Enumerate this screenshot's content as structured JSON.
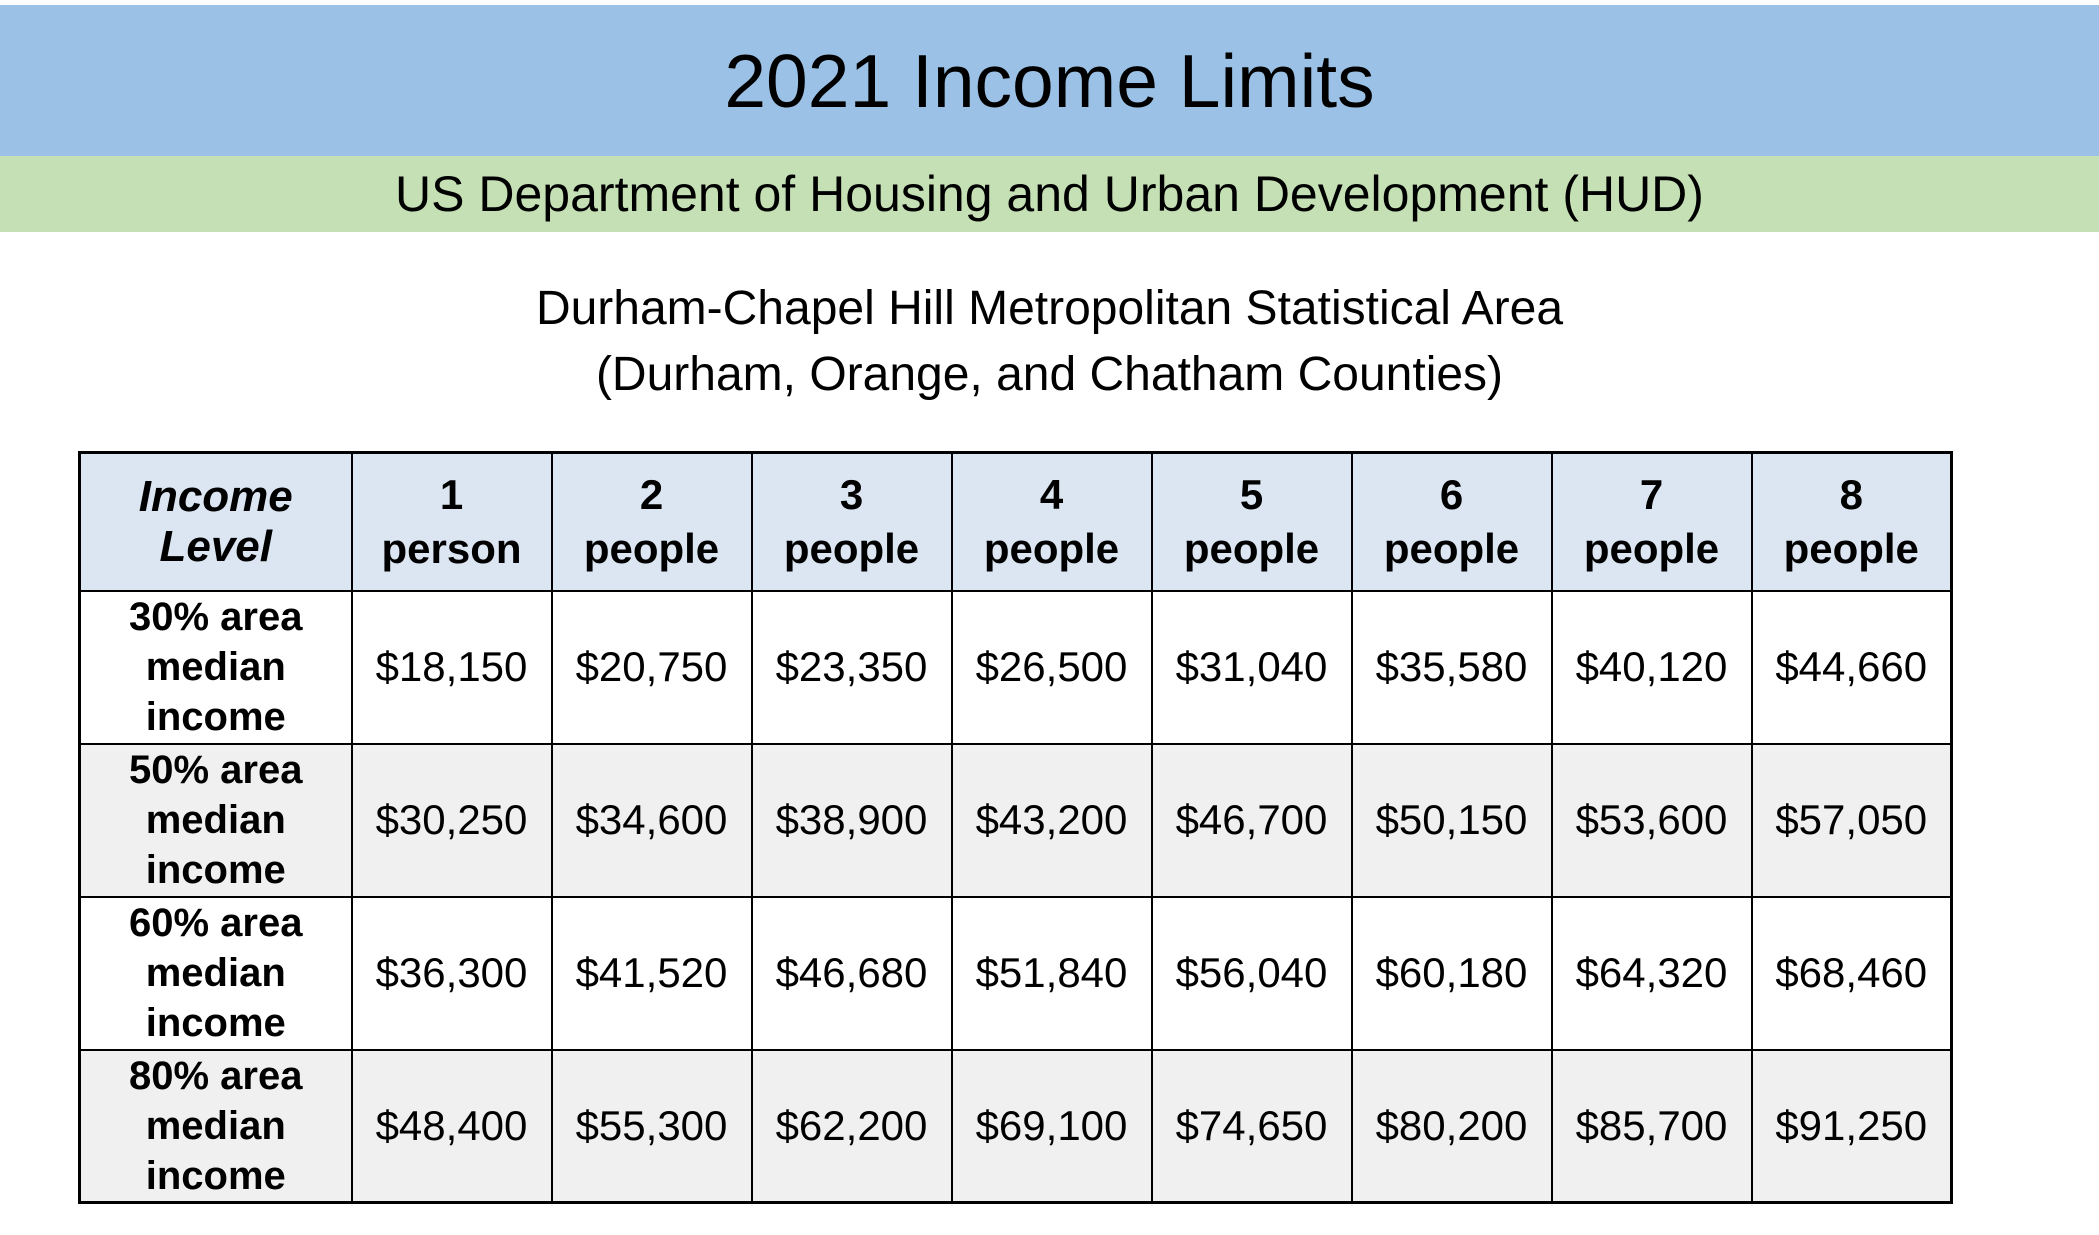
{
  "page": {
    "title": "2021 Income Limits",
    "agency_banner": "US Department of Housing and Urban Development (HUD)",
    "area_line1": "Durham-Chapel Hill Metropolitan Statistical Area",
    "area_line2": "(Durham, Orange, and Chatham Counties)"
  },
  "colors": {
    "title_band_bg": "#9BC2E6",
    "agency_band_bg": "#C5E0B4",
    "header_row_bg": "#DCE6F2",
    "alt_row_bg": "#F0F0F0",
    "table_border": "#000000",
    "text": "#000000"
  },
  "table": {
    "corner_header": "Income Level",
    "column_headers": [
      {
        "number": "1",
        "unit": "person"
      },
      {
        "number": "2",
        "unit": "people"
      },
      {
        "number": "3",
        "unit": "people"
      },
      {
        "number": "4",
        "unit": "people"
      },
      {
        "number": "5",
        "unit": "people"
      },
      {
        "number": "6",
        "unit": "people"
      },
      {
        "number": "7",
        "unit": "people"
      },
      {
        "number": "8",
        "unit": "people"
      }
    ],
    "rows": [
      {
        "label_lines": [
          "30% area",
          "median",
          "income"
        ],
        "values": [
          "$18,150",
          "$20,750",
          "$23,350",
          "$26,500",
          "$31,040",
          "$35,580",
          "$40,120",
          "$44,660"
        ]
      },
      {
        "label_lines": [
          "50% area",
          "median",
          "income"
        ],
        "values": [
          "$30,250",
          "$34,600",
          "$38,900",
          "$43,200",
          "$46,700",
          "$50,150",
          "$53,600",
          "$57,050"
        ]
      },
      {
        "label_lines": [
          "60% area",
          "median",
          "income"
        ],
        "values": [
          "$36,300",
          "$41,520",
          "$46,680",
          "$51,840",
          "$56,040",
          "$60,180",
          "$64,320",
          "$68,460"
        ]
      },
      {
        "label_lines": [
          "80% area",
          "median",
          "income"
        ],
        "values": [
          "$48,400",
          "$55,300",
          "$62,200",
          "$69,100",
          "$74,650",
          "$80,200",
          "$85,700",
          "$91,250"
        ]
      }
    ]
  }
}
